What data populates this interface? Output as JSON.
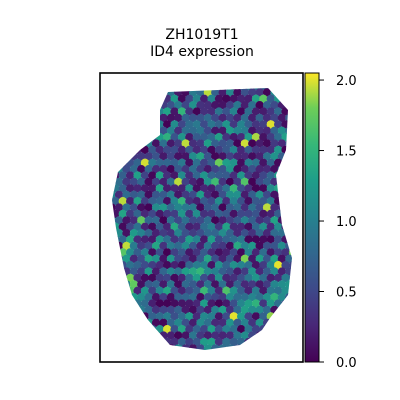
{
  "chart_data": {
    "type": "heatmap",
    "title": "ZH1019T1",
    "subtitle": "ID4 expression",
    "xlabel": "",
    "ylabel": "",
    "colormap": "viridis",
    "colorbar": {
      "min": 0.0,
      "max": 2.05,
      "ticks": [
        0.0,
        0.5,
        1.0,
        1.5,
        2.0
      ],
      "tick_labels": [
        "0.0",
        "0.5",
        "1.0",
        "1.5",
        "2.0"
      ]
    },
    "grid": false,
    "legend": "none",
    "spot_shape": "hexagon",
    "max_value": 2.05,
    "min_value": 0.0
  },
  "colors": {
    "viridis_low": "#440154",
    "viridis_mid": "#21918c",
    "viridis_high": "#fde725",
    "frame": "#000000",
    "background": "#ffffff"
  }
}
